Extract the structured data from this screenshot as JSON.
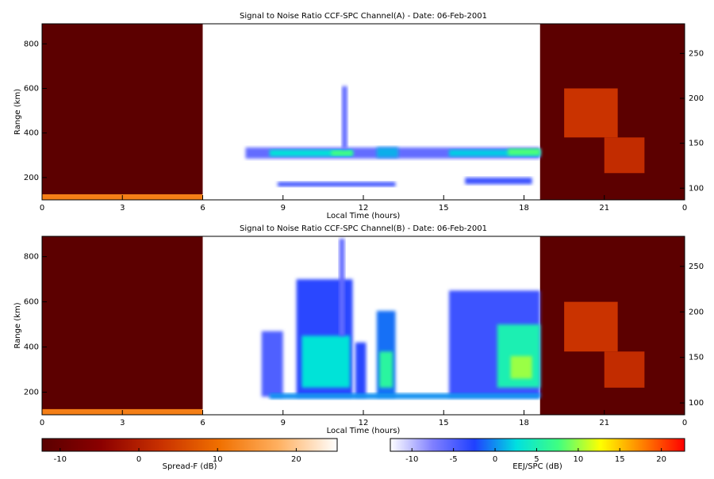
{
  "chart_data": [
    {
      "type": "heatmap",
      "title": "Signal to Noise Ratio CCF-SPC Channel(A) - Date: 06-Feb-2001",
      "x_label": "Local Time (hours)",
      "y_label": "Range (km)",
      "xlim": [
        0,
        24
      ],
      "xticks": [
        0,
        3,
        6,
        9,
        12,
        15,
        18,
        21,
        {
          "value": 24,
          "label": "0"
        }
      ],
      "ylim": [
        100,
        890
      ],
      "yticks": [
        200,
        400,
        600,
        800
      ],
      "y2lim": [
        87,
        283
      ],
      "y2ticks": [
        100,
        150,
        200,
        250
      ],
      "cells": [
        {
          "x": [
            0,
            6
          ],
          "y": [
            100,
            890
          ],
          "value": -12,
          "scale": 0
        },
        {
          "x": [
            0,
            6
          ],
          "y": [
            100,
            125
          ],
          "value": 12,
          "scale": 0
        },
        {
          "x": [
            18.6,
            24
          ],
          "y": [
            100,
            890
          ],
          "value": -12,
          "scale": 0
        },
        {
          "x": [
            19.5,
            21.5
          ],
          "y": [
            380,
            600
          ],
          "value": 3,
          "scale": 0
        },
        {
          "x": [
            21,
            22.5
          ],
          "y": [
            220,
            380
          ],
          "value": 2,
          "scale": 0
        },
        {
          "x": [
            7.6,
            18.6
          ],
          "y": [
            285,
            335
          ],
          "value": -6,
          "scale": 1
        },
        {
          "x": [
            8.5,
            11.6
          ],
          "y": [
            295,
            325
          ],
          "value": 3,
          "scale": 1
        },
        {
          "x": [
            10.8,
            11.6
          ],
          "y": [
            300,
            320
          ],
          "value": 8,
          "scale": 1
        },
        {
          "x": [
            12.5,
            13.3
          ],
          "y": [
            290,
            335
          ],
          "value": 1,
          "scale": 1
        },
        {
          "x": [
            15.2,
            18.6
          ],
          "y": [
            295,
            325
          ],
          "value": 2,
          "scale": 1
        },
        {
          "x": [
            17.4,
            18.6
          ],
          "y": [
            300,
            330
          ],
          "value": 8,
          "scale": 1
        },
        {
          "x": [
            8.8,
            13.2
          ],
          "y": [
            160,
            180
          ],
          "value": -4,
          "scale": 1
        },
        {
          "x": [
            15.8,
            18.3
          ],
          "y": [
            170,
            200
          ],
          "value": -4,
          "scale": 1
        },
        {
          "x": [
            11.2,
            11.4
          ],
          "y": [
            330,
            610
          ],
          "value": -6,
          "scale": 1
        }
      ]
    },
    {
      "type": "heatmap",
      "title": "Signal to Noise Ratio CCF-SPC Channel(B) - Date: 06-Feb-2001",
      "x_label": "Local Time (hours)",
      "y_label": "Range (km)",
      "xlim": [
        0,
        24
      ],
      "xticks": [
        0,
        3,
        6,
        9,
        12,
        15,
        18,
        21,
        {
          "value": 24,
          "label": "0"
        }
      ],
      "ylim": [
        100,
        890
      ],
      "yticks": [
        200,
        400,
        600,
        800
      ],
      "y2lim": [
        87,
        283
      ],
      "y2ticks": [
        100,
        150,
        200,
        250
      ],
      "cells": [
        {
          "x": [
            0,
            6
          ],
          "y": [
            100,
            890
          ],
          "value": -12,
          "scale": 0
        },
        {
          "x": [
            0,
            6
          ],
          "y": [
            100,
            125
          ],
          "value": 12,
          "scale": 0
        },
        {
          "x": [
            18.6,
            24
          ],
          "y": [
            100,
            890
          ],
          "value": -12,
          "scale": 0
        },
        {
          "x": [
            19.5,
            21.5
          ],
          "y": [
            380,
            600
          ],
          "value": 3,
          "scale": 0
        },
        {
          "x": [
            21,
            22.5
          ],
          "y": [
            220,
            380
          ],
          "value": 2,
          "scale": 0
        },
        {
          "x": [
            8.2,
            9
          ],
          "y": [
            180,
            470
          ],
          "value": -5,
          "scale": 1
        },
        {
          "x": [
            9.5,
            11.6
          ],
          "y": [
            180,
            700
          ],
          "value": -3,
          "scale": 1
        },
        {
          "x": [
            9.7,
            11.5
          ],
          "y": [
            220,
            450
          ],
          "value": 3,
          "scale": 1
        },
        {
          "x": [
            11.1,
            11.3
          ],
          "y": [
            450,
            880
          ],
          "value": -6,
          "scale": 1
        },
        {
          "x": [
            11.7,
            12.1
          ],
          "y": [
            180,
            420
          ],
          "value": -3,
          "scale": 1
        },
        {
          "x": [
            12.5,
            13.2
          ],
          "y": [
            180,
            560
          ],
          "value": -1,
          "scale": 1
        },
        {
          "x": [
            12.6,
            13.1
          ],
          "y": [
            220,
            380
          ],
          "value": 6,
          "scale": 1
        },
        {
          "x": [
            15.2,
            18.6
          ],
          "y": [
            180,
            650
          ],
          "value": -4,
          "scale": 1
        },
        {
          "x": [
            17.0,
            18.6
          ],
          "y": [
            220,
            500
          ],
          "value": 5,
          "scale": 1
        },
        {
          "x": [
            17.5,
            18.3
          ],
          "y": [
            260,
            360
          ],
          "value": 10,
          "scale": 1
        },
        {
          "x": [
            8.5,
            18.6
          ],
          "y": [
            170,
            195
          ],
          "value": 0,
          "scale": 1
        }
      ]
    }
  ],
  "colorbars": [
    {
      "label": "Spread-F (dB)",
      "lim": [
        -12.3,
        25.2
      ],
      "ticks": [
        -10,
        0,
        10,
        20
      ],
      "colors": [
        "#5a0000",
        "#8b0000",
        "#c83000",
        "#f07000",
        "#ffb060",
        "#ffffff"
      ]
    },
    {
      "label": "EEJ/SPC (dB)",
      "lim": [
        -12.6,
        22.8
      ],
      "ticks": [
        -10,
        -5,
        0,
        5,
        10,
        15,
        20
      ],
      "colors": [
        "#ffffff",
        "#8080ff",
        "#2040ff",
        "#00e0e0",
        "#40ff80",
        "#ffff00",
        "#ff8000",
        "#ff0000"
      ]
    }
  ]
}
